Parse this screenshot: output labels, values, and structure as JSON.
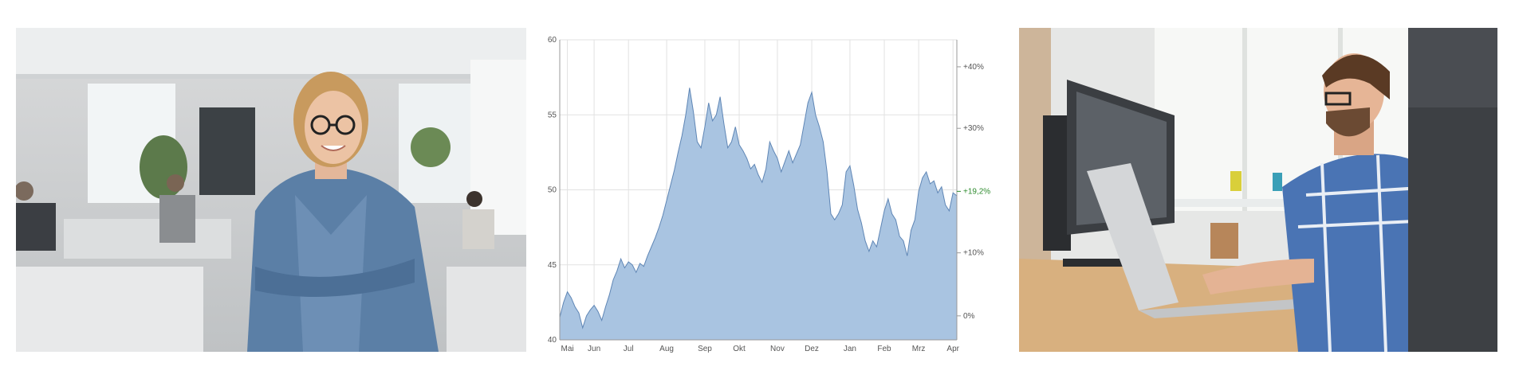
{
  "images": {
    "left": {
      "subject": "smiling woman with glasses and denim jacket, arms crossed, in a bright open-plan office"
    },
    "right": {
      "subject": "man with glasses in plaid shirt typing on a laptop at a wooden desk beside a monitor"
    }
  },
  "colors": {
    "area_fill": "#a9c4e1",
    "area_stroke": "#5f86b5",
    "grid": "#e2e2e2",
    "axis_text": "#555555",
    "highlight_text": "#2e8b2e"
  },
  "chart_data": {
    "type": "area",
    "title": "",
    "xlabel": "",
    "ylabel": "",
    "ylim": [
      40,
      60
    ],
    "left_ticks": [
      40,
      45,
      50,
      55,
      60
    ],
    "right_ticks": [
      {
        "label": "0%",
        "value": 41.6
      },
      {
        "label": "+10%",
        "value": 45.8
      },
      {
        "label": "+30%",
        "value": 54.1
      },
      {
        "label": "+40%",
        "value": 58.2
      }
    ],
    "highlight": {
      "label": "+19,2%",
      "value": 49.9
    },
    "months": [
      {
        "label": "Mai",
        "index": 2
      },
      {
        "label": "Jun",
        "index": 9
      },
      {
        "label": "Jul",
        "index": 18
      },
      {
        "label": "Aug",
        "index": 28
      },
      {
        "label": "Sep",
        "index": 38
      },
      {
        "label": "Okt",
        "index": 47
      },
      {
        "label": "Nov",
        "index": 57
      },
      {
        "label": "Dez",
        "index": 66
      },
      {
        "label": "Jan",
        "index": 76
      },
      {
        "label": "Feb",
        "index": 85
      },
      {
        "label": "Mrz",
        "index": 94
      },
      {
        "label": "Apr",
        "index": 103
      }
    ],
    "grid": true,
    "values": [
      41.5,
      42.5,
      43.2,
      42.8,
      42.2,
      41.8,
      40.8,
      41.6,
      42.0,
      42.3,
      41.9,
      41.3,
      42.2,
      43.0,
      44.0,
      44.6,
      45.4,
      44.8,
      45.2,
      45.0,
      44.5,
      45.1,
      44.9,
      45.6,
      46.2,
      46.8,
      47.5,
      48.3,
      49.3,
      50.3,
      51.3,
      52.5,
      53.6,
      55.0,
      56.8,
      55.2,
      53.2,
      52.8,
      54.2,
      55.8,
      54.6,
      55.0,
      56.2,
      54.4,
      52.8,
      53.2,
      54.2,
      53.0,
      52.6,
      52.1,
      51.4,
      51.7,
      51.0,
      50.5,
      51.4,
      53.2,
      52.6,
      52.1,
      51.2,
      51.9,
      52.6,
      51.8,
      52.4,
      53.0,
      54.4,
      55.8,
      56.5,
      55.0,
      54.2,
      53.2,
      51.2,
      48.4,
      48.0,
      48.4,
      49.0,
      51.2,
      51.6,
      50.3,
      48.7,
      47.8,
      46.6,
      45.9,
      46.6,
      46.2,
      47.4,
      48.6,
      49.4,
      48.4,
      48.0,
      46.9,
      46.6,
      45.6,
      47.3,
      48.0,
      49.9,
      50.8,
      51.2,
      50.4,
      50.6,
      49.8,
      50.2,
      49.0,
      48.6,
      49.8,
      49.6
    ]
  }
}
